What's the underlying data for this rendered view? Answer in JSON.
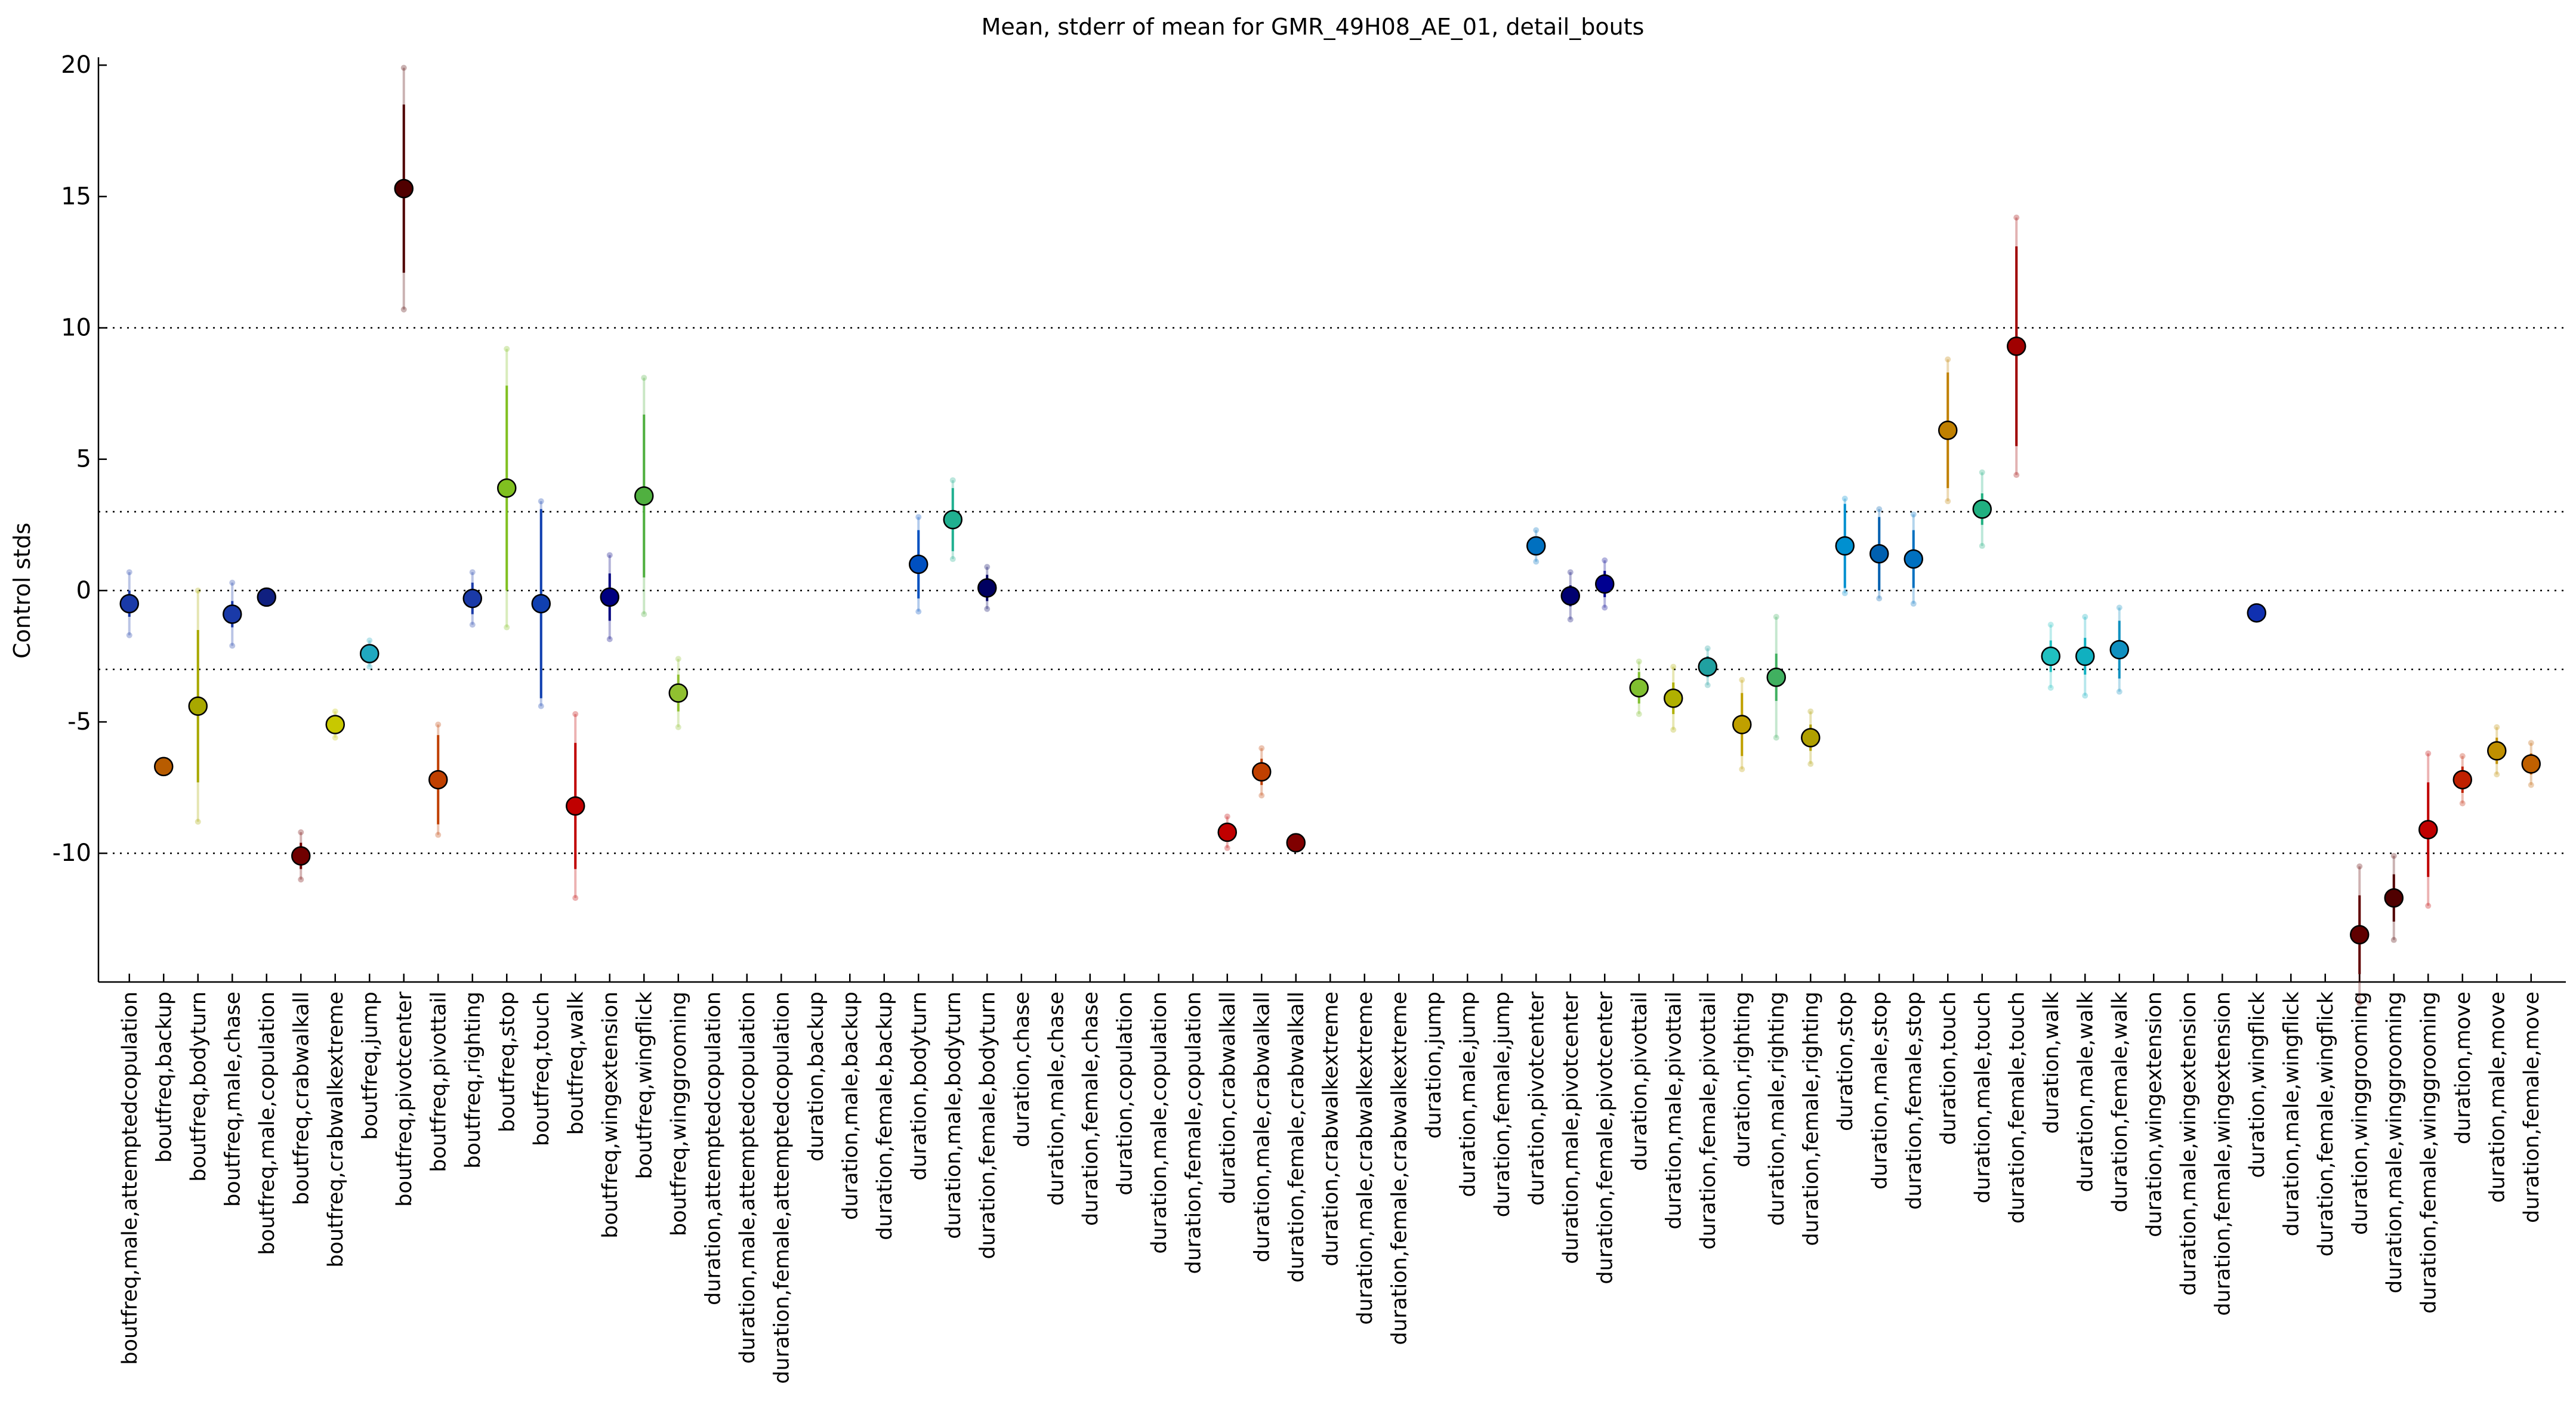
{
  "chart_data": {
    "type": "errorbar",
    "title": "Mean, stderr of mean for GMR_49H08_AE_01, detail_bouts",
    "y_label": "Control stds",
    "categories": [
      "boutfreq,male,attemptedcopulation",
      "boutfreq,backup",
      "boutfreq,bodyturn",
      "boutfreq,male,chase",
      "boutfreq,male,copulation",
      "boutfreq,crabwalkall",
      "boutfreq,crabwalkextreme",
      "boutfreq,jump",
      "boutfreq,pivotcenter",
      "boutfreq,pivottail",
      "boutfreq,righting",
      "boutfreq,stop",
      "boutfreq,touch",
      "boutfreq,walk",
      "boutfreq,wingextension",
      "boutfreq,wingflick",
      "boutfreq,winggrooming",
      "duration,attemptedcopulation",
      "duration,male,attemptedcopulation",
      "duration,female,attemptedcopulation",
      "duration,backup",
      "duration,male,backup",
      "duration,female,backup",
      "duration,bodyturn",
      "duration,male,bodyturn",
      "duration,female,bodyturn",
      "duration,chase",
      "duration,male,chase",
      "duration,female,chase",
      "duration,copulation",
      "duration,male,copulation",
      "duration,female,copulation",
      "duration,crabwalkall",
      "duration,male,crabwalkall",
      "duration,female,crabwalkall",
      "duration,crabwalkextreme",
      "duration,male,crabwalkextreme",
      "duration,female,crabwalkextreme",
      "duration,jump",
      "duration,male,jump",
      "duration,female,jump",
      "duration,pivotcenter",
      "duration,male,pivotcenter",
      "duration,female,pivotcenter",
      "duration,pivottail",
      "duration,male,pivottail",
      "duration,female,pivottail",
      "duration,righting",
      "duration,male,righting",
      "duration,female,righting",
      "duration,stop",
      "duration,male,stop",
      "duration,female,stop",
      "duration,touch",
      "duration,male,touch",
      "duration,female,touch",
      "duration,walk",
      "duration,male,walk",
      "duration,female,walk",
      "duration,wingextension",
      "duration,male,wingextension",
      "duration,female,wingextension",
      "duration,wingflick",
      "duration,male,wingflick",
      "duration,female,wingflick",
      "duration,winggrooming",
      "duration,male,winggrooming",
      "duration,female,winggrooming",
      "duration,move",
      "duration,male,move",
      "duration,female,move"
    ],
    "values": [
      -0.5,
      -6.7,
      -4.4,
      -0.9,
      -0.25,
      -10.1,
      -5.1,
      -2.4,
      15.3,
      -7.2,
      -0.3,
      3.9,
      -0.5,
      -8.2,
      -0.25,
      3.6,
      -3.9,
      null,
      null,
      null,
      null,
      null,
      null,
      1.0,
      2.7,
      0.1,
      null,
      null,
      null,
      null,
      null,
      null,
      -9.2,
      -6.9,
      -9.6,
      null,
      null,
      null,
      null,
      null,
      null,
      1.7,
      -0.2,
      0.25,
      -3.7,
      -4.1,
      -2.9,
      -5.1,
      -3.3,
      -5.6,
      1.7,
      1.4,
      1.2,
      6.1,
      3.1,
      9.3,
      -2.5,
      -2.5,
      -2.25,
      null,
      null,
      null,
      -0.85,
      null,
      null,
      -13.1,
      -11.7,
      -9.1,
      -7.2,
      -6.1,
      -6.6
    ],
    "errors": [
      0.5,
      0.1,
      2.9,
      0.5,
      0.1,
      0.5,
      0.2,
      0.2,
      3.2,
      1.7,
      0.6,
      3.9,
      3.6,
      2.4,
      0.9,
      3.1,
      0.7,
      null,
      null,
      null,
      null,
      null,
      null,
      1.3,
      1.2,
      0.5,
      null,
      null,
      null,
      null,
      null,
      null,
      0.3,
      0.5,
      0.1,
      null,
      null,
      null,
      null,
      null,
      null,
      0.3,
      0.4,
      0.5,
      0.6,
      0.6,
      0.4,
      1.2,
      0.9,
      0.5,
      1.6,
      1.4,
      1.1,
      2.2,
      0.6,
      3.8,
      0.6,
      0.7,
      1.1,
      null,
      null,
      null,
      0.1,
      null,
      null,
      1.5,
      0.9,
      1.8,
      0.5,
      0.5,
      0.4
    ],
    "spread": [
      1.2,
      0.2,
      4.4,
      1.2,
      0.2,
      0.9,
      0.5,
      0.5,
      4.6,
      2.1,
      1.0,
      5.3,
      3.9,
      3.5,
      1.6,
      4.5,
      1.3,
      null,
      null,
      null,
      null,
      null,
      null,
      1.8,
      1.5,
      0.8,
      null,
      null,
      null,
      null,
      null,
      null,
      0.6,
      0.9,
      0.2,
      null,
      null,
      null,
      null,
      null,
      null,
      0.6,
      0.9,
      0.9,
      1.0,
      1.2,
      0.7,
      1.7,
      2.3,
      1.0,
      1.8,
      1.7,
      1.7,
      2.7,
      1.4,
      4.9,
      1.2,
      1.5,
      1.6,
      null,
      null,
      null,
      0.2,
      null,
      null,
      2.6,
      1.6,
      2.9,
      0.9,
      0.9,
      0.8
    ],
    "colors": [
      "#1a3aa8",
      "#b85c00",
      "#a8a800",
      "#1a3aa8",
      "#102080",
      "#700000",
      "#c8c800",
      "#20a8c0",
      "#500000",
      "#c04000",
      "#1a3aa8",
      "#80c020",
      "#1040b0",
      "#c00000",
      "#000080",
      "#50b040",
      "#90c030",
      "#999999",
      "#999999",
      "#999999",
      "#999999",
      "#999999",
      "#999999",
      "#0050c0",
      "#20b090",
      "#000060",
      "#999999",
      "#999999",
      "#999999",
      "#999999",
      "#999999",
      "#999999",
      "#c00000",
      "#c04000",
      "#800000",
      "#999999",
      "#999999",
      "#999999",
      "#999999",
      "#999999",
      "#999999",
      "#0070c0",
      "#000070",
      "#000090",
      "#80c030",
      "#b0b000",
      "#20a0a0",
      "#c0a000",
      "#40b060",
      "#b0a000",
      "#0090d0",
      "#0060b0",
      "#0070c0",
      "#c08000",
      "#20b080",
      "#a00000",
      "#20c0c0",
      "#10b0c0",
      "#1090c0",
      "#999999",
      "#999999",
      "#999999",
      "#1030b0",
      "#999999",
      "#999999",
      "#600000",
      "#500000",
      "#c00000",
      "#c02000",
      "#c09000",
      "#c06000"
    ],
    "ylim": [
      -14.9,
      20.3
    ],
    "yticks": [
      -10,
      -5,
      0,
      5,
      10,
      15,
      20
    ],
    "hlines": [
      10,
      3,
      0,
      -3,
      -10
    ]
  }
}
